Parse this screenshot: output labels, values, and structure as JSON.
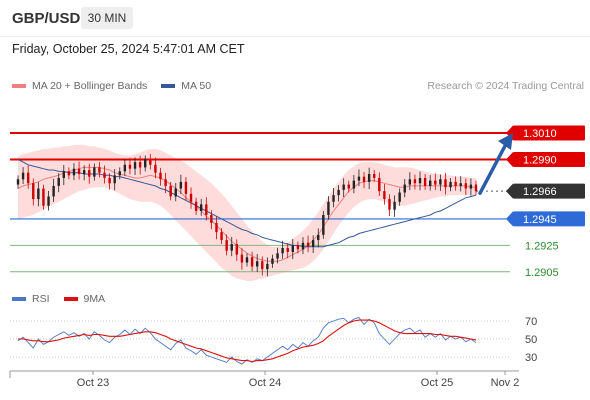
{
  "header": {
    "pair": "GBP/USD",
    "timeframe": "30 MIN",
    "timestamp": "Friday, October 25, 2024 5:47:01 AM CET"
  },
  "legend": {
    "bollinger_label": "MA 20 + Bollinger Bands",
    "ma50_label": "MA 50",
    "research": "Research © 2024 Trading Central"
  },
  "rsi_legend": {
    "rsi_label": "RSI",
    "ma_label": "9MA"
  },
  "colors": {
    "up": "#222222",
    "down": "#cc0000",
    "band": "#ffd6d6",
    "ma20": "#f08080",
    "ma50": "#35589a",
    "resistance": "#e00000",
    "support": "#2f6bd6",
    "target": "#2e8b2e",
    "current": "#333333",
    "arrow": "#2a5ca8"
  },
  "chart_data": {
    "type": "candlestick",
    "x_labels": [
      "Oct 23",
      "Oct 24",
      "Oct 25",
      "Nov 2"
    ],
    "price_ylim": [
      1.2895,
      1.3035
    ],
    "levels": [
      {
        "value": 1.301,
        "label": "1.3010",
        "kind": "resistance"
      },
      {
        "value": 1.299,
        "label": "1.2990",
        "kind": "resistance"
      },
      {
        "value": 1.2966,
        "label": "1.2966",
        "kind": "current"
      },
      {
        "value": 1.2945,
        "label": "1.2945",
        "kind": "support"
      },
      {
        "value": 1.2925,
        "label": "1.2925",
        "kind": "target"
      },
      {
        "value": 1.2905,
        "label": "1.2905",
        "kind": "target"
      }
    ],
    "closes": [
      1.2975,
      1.298,
      1.2972,
      1.296,
      1.2968,
      1.2955,
      1.2962,
      1.297,
      1.2976,
      1.2981,
      1.2978,
      1.2983,
      1.2979,
      1.2982,
      1.2977,
      1.2984,
      1.298,
      1.2976,
      1.2972,
      1.2978,
      1.2981,
      1.2986,
      1.2983,
      1.2988,
      1.2984,
      1.299,
      1.2986,
      1.298,
      1.2975,
      1.297,
      1.2962,
      1.2968,
      1.2973,
      1.2964,
      1.2958,
      1.2951,
      1.2956,
      1.2948,
      1.2942,
      1.2935,
      1.2929,
      1.2921,
      1.2926,
      1.2918,
      1.2912,
      1.2916,
      1.2909,
      1.2913,
      1.2907,
      1.2911,
      1.2915,
      1.2919,
      1.2923,
      1.292,
      1.2925,
      1.2922,
      1.2927,
      1.2924,
      1.2929,
      1.2933,
      1.2948,
      1.2958,
      1.2963,
      1.2967,
      1.2971,
      1.2968,
      1.2974,
      1.2977,
      1.2973,
      1.2979,
      1.2976,
      1.2966,
      1.296,
      1.2952,
      1.2958,
      1.2965,
      1.2971,
      1.2975,
      1.2972,
      1.2976,
      1.297,
      1.2974,
      1.2971,
      1.2975,
      1.2969,
      1.2973,
      1.297,
      1.2972,
      1.2968,
      1.2971,
      1.2966
    ],
    "bb_upper": [
      1.2992,
      1.2994,
      1.2995,
      1.2996,
      1.2997,
      1.2998,
      1.2998,
      1.2999,
      1.2999,
      1.3,
      1.3,
      1.3001,
      1.3001,
      1.3001,
      1.3,
      1.3,
      1.2999,
      1.2998,
      1.2997,
      1.2995,
      1.2994,
      1.2993,
      1.2993,
      1.2994,
      1.2995,
      1.2997,
      1.2998,
      1.2998,
      1.2997,
      1.2995,
      1.2993,
      1.2991,
      1.2989,
      1.2987,
      1.2984,
      1.2981,
      1.2978,
      1.2975,
      1.2972,
      1.2968,
      1.2964,
      1.296,
      1.2955,
      1.295,
      1.2945,
      1.294,
      1.2936,
      1.2932,
      1.2928,
      1.2925,
      1.2924,
      1.2924,
      1.2925,
      1.2927,
      1.293,
      1.2933,
      1.2936,
      1.294,
      1.2945,
      1.295,
      1.2956,
      1.2962,
      1.2968,
      1.2973,
      1.2978,
      1.2982,
      1.2985,
      1.2987,
      1.2988,
      1.2988,
      1.2988,
      1.2987,
      1.2986,
      1.2985,
      1.2984,
      1.2984,
      1.2984,
      1.2984,
      1.2983,
      1.2982,
      1.2981,
      1.298,
      1.2979,
      1.2979,
      1.2978,
      1.2978,
      1.2977,
      1.2977,
      1.2977,
      1.2976,
      1.2976
    ],
    "bb_lower": [
      1.2945,
      1.2946,
      1.2947,
      1.2948,
      1.295,
      1.2952,
      1.2954,
      1.2956,
      1.2958,
      1.296,
      1.2962,
      1.2964,
      1.2966,
      1.2967,
      1.2968,
      1.2969,
      1.2969,
      1.2969,
      1.2968,
      1.2966,
      1.2964,
      1.2962,
      1.296,
      1.2959,
      1.2958,
      1.2958,
      1.2958,
      1.2957,
      1.2955,
      1.2952,
      1.2948,
      1.2944,
      1.294,
      1.2936,
      1.2932,
      1.2928,
      1.2924,
      1.292,
      1.2916,
      1.2912,
      1.2908,
      1.2905,
      1.2902,
      1.29,
      1.2899,
      1.2898,
      1.2898,
      1.2899,
      1.29,
      1.2901,
      1.2902,
      1.2903,
      1.2904,
      1.2905,
      1.2906,
      1.2907,
      1.2908,
      1.291,
      1.2913,
      1.2917,
      1.2922,
      1.2928,
      1.2934,
      1.294,
      1.2945,
      1.295,
      1.2954,
      1.2957,
      1.2959,
      1.296,
      1.296,
      1.2959,
      1.2958,
      1.2957,
      1.2956,
      1.2955,
      1.2955,
      1.2956,
      1.2957,
      1.2958,
      1.2959,
      1.296,
      1.2961,
      1.2962,
      1.2962,
      1.2963,
      1.2963,
      1.2963,
      1.2963,
      1.2963,
      1.2963
    ],
    "ma20": [
      1.2968,
      1.297,
      1.2971,
      1.2972,
      1.2973,
      1.2975,
      1.2976,
      1.2977,
      1.2978,
      1.298,
      1.2981,
      1.2982,
      1.2983,
      1.2984,
      1.2984,
      1.2984,
      1.2984,
      1.2983,
      1.2982,
      1.298,
      1.2979,
      1.2978,
      1.2977,
      1.2976,
      1.2976,
      1.2977,
      1.2978,
      1.2977,
      1.2976,
      1.2974,
      1.2971,
      1.2968,
      1.2965,
      1.2961,
      1.2958,
      1.2955,
      1.2951,
      1.2947,
      1.2944,
      1.294,
      1.2936,
      1.2932,
      1.2928,
      1.2925,
      1.2922,
      1.2919,
      1.2917,
      1.2915,
      1.2914,
      1.2913,
      1.2913,
      1.2913,
      1.2914,
      1.2916,
      1.2918,
      1.292,
      1.2922,
      1.2925,
      1.2929,
      1.2933,
      1.2939,
      1.2945,
      1.2951,
      1.2956,
      1.2961,
      1.2966,
      1.2969,
      1.2972,
      1.2973,
      1.2974,
      1.2974,
      1.2973,
      1.2972,
      1.2971,
      1.297,
      1.2969,
      1.2969,
      1.297,
      1.297,
      1.297,
      1.297,
      1.297,
      1.297,
      1.297,
      1.297,
      1.297,
      1.297,
      1.297,
      1.297,
      1.2969,
      1.2969
    ],
    "ma50": [
      1.299,
      1.2988,
      1.2986,
      1.2985,
      1.2984,
      1.2983,
      1.2982,
      1.2982,
      1.2981,
      1.2981,
      1.298,
      1.298,
      1.298,
      1.2979,
      1.2979,
      1.2979,
      1.2979,
      1.2978,
      1.2978,
      1.2977,
      1.2977,
      1.2976,
      1.2975,
      1.2974,
      1.2973,
      1.2972,
      1.2971,
      1.297,
      1.2968,
      1.2967,
      1.2965,
      1.2963,
      1.2961,
      1.2959,
      1.2957,
      1.2955,
      1.2953,
      1.2951,
      1.2949,
      1.2947,
      1.2945,
      1.2943,
      1.2941,
      1.2939,
      1.2937,
      1.2936,
      1.2934,
      1.2933,
      1.2931,
      1.293,
      1.2929,
      1.2928,
      1.2927,
      1.2926,
      1.2925,
      1.2925,
      1.2924,
      1.2924,
      1.2924,
      1.2924,
      1.2924,
      1.2925,
      1.2926,
      1.2927,
      1.2929,
      1.2931,
      1.2932,
      1.2934,
      1.2935,
      1.2936,
      1.2937,
      1.2938,
      1.2939,
      1.294,
      1.2941,
      1.2942,
      1.2943,
      1.2944,
      1.2945,
      1.2946,
      1.2947,
      1.2948,
      1.295,
      1.2951,
      1.2953,
      1.2955,
      1.2957,
      1.2959,
      1.2961,
      1.2962,
      1.2963
    ],
    "rsi_ylim": [
      20,
      80
    ],
    "rsi_ticks": [
      70,
      50,
      30
    ],
    "rsi": [
      48,
      52,
      46,
      40,
      50,
      44,
      47,
      52,
      55,
      58,
      54,
      57,
      53,
      56,
      50,
      58,
      54,
      49,
      46,
      52,
      55,
      60,
      55,
      61,
      56,
      62,
      57,
      50,
      46,
      42,
      38,
      45,
      49,
      40,
      37,
      33,
      38,
      32,
      30,
      28,
      26,
      24,
      30,
      25,
      22,
      27,
      24,
      28,
      26,
      30,
      34,
      38,
      42,
      38,
      44,
      40,
      46,
      42,
      48,
      52,
      62,
      68,
      70,
      72,
      73,
      68,
      72,
      74,
      66,
      72,
      68,
      56,
      50,
      44,
      50,
      56,
      60,
      62,
      57,
      60,
      52,
      56,
      52,
      56,
      49,
      53,
      50,
      52,
      47,
      50,
      46
    ],
    "rsi_ma": [
      50,
      50,
      49,
      48,
      48,
      47,
      47,
      48,
      49,
      51,
      52,
      53,
      54,
      55,
      54,
      55,
      55,
      54,
      53,
      53,
      53,
      54,
      55,
      56,
      57,
      58,
      58,
      57,
      55,
      53,
      50,
      48,
      46,
      44,
      42,
      40,
      39,
      37,
      35,
      33,
      31,
      29,
      28,
      27,
      26,
      26,
      25,
      26,
      26,
      27,
      28,
      30,
      32,
      34,
      37,
      39,
      41,
      42,
      43,
      45,
      48,
      53,
      57,
      61,
      65,
      68,
      70,
      71,
      71,
      71,
      70,
      68,
      65,
      62,
      59,
      57,
      56,
      56,
      56,
      56,
      56,
      56,
      55,
      55,
      54,
      53,
      53,
      52,
      51,
      50,
      49
    ]
  }
}
